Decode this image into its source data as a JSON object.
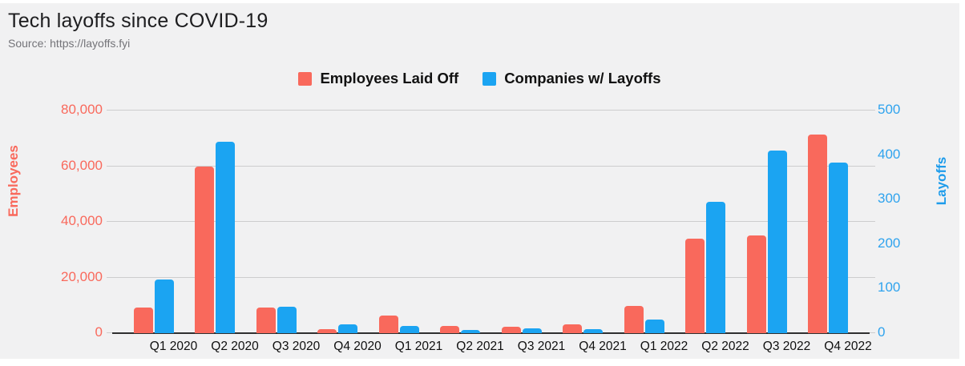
{
  "header": {
    "title": "Tech layoffs since COVID-19",
    "source": "Source: https://layoffs.fyi"
  },
  "legend": [
    {
      "label": "Employees Laid Off",
      "color": "#f9695c"
    },
    {
      "label": "Companies w/ Layoffs",
      "color": "#1ba4f2"
    }
  ],
  "colors": {
    "employees": "#f9695c",
    "companies": "#1ba4f2",
    "background": "#f1f1f2",
    "gridline": "#cdcdce",
    "axis_line": "#2f2f2f"
  },
  "chart_data": {
    "type": "bar",
    "title": "Tech layoffs since COVID-19",
    "subtitle": "Source: https://layoffs.fyi",
    "categories": [
      "Q1 2020",
      "Q2 2020",
      "Q3 2020",
      "Q4 2020",
      "Q1 2021",
      "Q2 2021",
      "Q3 2021",
      "Q4 2021",
      "Q1 2022",
      "Q2 2022",
      "Q3 2022",
      "Q4 2022"
    ],
    "series": [
      {
        "name": "Employees Laid Off",
        "axis": "left",
        "color": "#f9695c",
        "values": [
          9300,
          60000,
          9200,
          1300,
          6200,
          2700,
          2200,
          3300,
          9700,
          34000,
          35000,
          71500
        ]
      },
      {
        "name": "Companies w/ Layoffs",
        "axis": "right",
        "color": "#1ba4f2",
        "values": [
          120,
          430,
          60,
          20,
          17,
          7,
          11,
          9,
          30,
          295,
          410,
          383
        ]
      }
    ],
    "left_axis": {
      "title": "Employees",
      "max": 80000,
      "ticks": [
        "0",
        "20,000",
        "40,000",
        "60,000",
        "80,000"
      ],
      "color": "#f9695c"
    },
    "right_axis": {
      "title": "Layoffs",
      "max": 500,
      "ticks": [
        "0",
        "100",
        "200",
        "300",
        "400",
        "500"
      ],
      "color": "#2fa3ee"
    },
    "grid": true,
    "legend_position": "top"
  }
}
